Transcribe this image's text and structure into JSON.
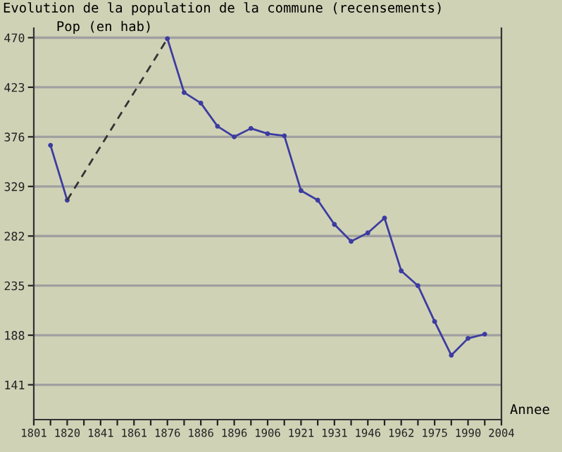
{
  "chart_data": {
    "type": "line",
    "title": "Evolution de la population de la commune (recensements)",
    "ylabel": "Pop (en hab)",
    "xlabel": "Annee",
    "categories": [
      "1801",
      null,
      "1820",
      null,
      "1841",
      null,
      "1861",
      null,
      "1876",
      null,
      "1886",
      null,
      "1896",
      null,
      "1906",
      null,
      "1921",
      null,
      "1931",
      null,
      "1946",
      null,
      "1962",
      null,
      "1975",
      null,
      "1990",
      null,
      "2004"
    ],
    "series": [
      {
        "color": "#3c3ca0",
        "marker": "circle",
        "line_style": "solid",
        "values": [
          null,
          368,
          316,
          null,
          null,
          null,
          null,
          null,
          469,
          418,
          408,
          386,
          376,
          384,
          379,
          377,
          325,
          316,
          293,
          277,
          285,
          299,
          249,
          235,
          201,
          169,
          185,
          189,
          null
        ]
      },
      {
        "color": "#333333",
        "marker": "none",
        "line_style": "dashed",
        "values": [
          null,
          null,
          316,
          null,
          null,
          null,
          null,
          null,
          469,
          null,
          null,
          null,
          null,
          null,
          null,
          null,
          null,
          null,
          null,
          null,
          null,
          null,
          null,
          null,
          null,
          null,
          null,
          null,
          null
        ]
      }
    ],
    "ylim": [
      108,
      479
    ],
    "yticks": [
      141,
      188,
      235,
      282,
      329,
      376,
      423,
      470
    ],
    "grid": "y",
    "legend": false
  }
}
